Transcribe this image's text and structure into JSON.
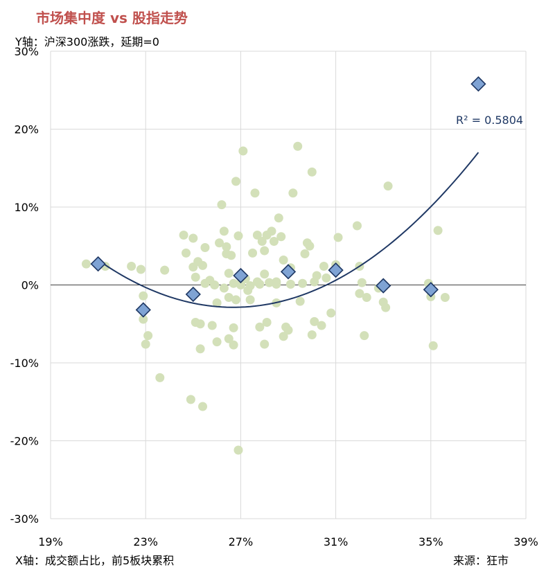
{
  "title": "市场集中度 vs 股指走势",
  "ylabel": "Y轴：沪深300涨跌，延期=0",
  "xlabel": "X轴：成交额占比，前5板块累积",
  "source": "来源：狂市",
  "chart_data": {
    "type": "scatter",
    "title": "市场集中度 vs 股指走势",
    "xlabel": "X轴：成交额占比，前5板块累积",
    "ylabel": "Y轴：沪深300涨跌，延期=0",
    "xlim": [
      0.19,
      0.39
    ],
    "ylim": [
      -0.3,
      0.3
    ],
    "x_ticks": [
      0.19,
      0.23,
      0.27,
      0.31,
      0.35,
      0.39
    ],
    "x_tick_labels": [
      "19%",
      "23%",
      "27%",
      "31%",
      "35%",
      "39%"
    ],
    "y_ticks": [
      0.3,
      0.2,
      0.1,
      0.0,
      -0.1,
      -0.2,
      -0.3
    ],
    "y_tick_labels": [
      "30%",
      "20%",
      "10%",
      "0%",
      "-10%",
      "-20%",
      "-30%"
    ],
    "grid": true,
    "colors": {
      "scatter": "#d3e0b9",
      "diamond_fill": "#7fa3d4",
      "diamond_stroke": "#1f3864",
      "trend": "#1f3864",
      "title": "#c0504d"
    },
    "series": [
      {
        "marker": "circle",
        "x": [
          0.205,
          0.213,
          0.224,
          0.228,
          0.229,
          0.229,
          0.23,
          0.231,
          0.236,
          0.238,
          0.246,
          0.247,
          0.249,
          0.25,
          0.25,
          0.251,
          0.251,
          0.252,
          0.253,
          0.253,
          0.254,
          0.254,
          0.255,
          0.255,
          0.257,
          0.258,
          0.259,
          0.26,
          0.26,
          0.261,
          0.262,
          0.263,
          0.263,
          0.264,
          0.264,
          0.265,
          0.265,
          0.265,
          0.266,
          0.267,
          0.267,
          0.267,
          0.268,
          0.268,
          0.269,
          0.269,
          0.27,
          0.27,
          0.271,
          0.272,
          0.273,
          0.274,
          0.274,
          0.275,
          0.276,
          0.277,
          0.277,
          0.278,
          0.278,
          0.279,
          0.28,
          0.28,
          0.28,
          0.281,
          0.281,
          0.282,
          0.283,
          0.284,
          0.285,
          0.285,
          0.285,
          0.286,
          0.287,
          0.288,
          0.288,
          0.289,
          0.29,
          0.291,
          0.291,
          0.292,
          0.294,
          0.295,
          0.296,
          0.297,
          0.298,
          0.299,
          0.3,
          0.3,
          0.301,
          0.301,
          0.302,
          0.304,
          0.305,
          0.306,
          0.308,
          0.31,
          0.311,
          0.319,
          0.32,
          0.32,
          0.321,
          0.322,
          0.323,
          0.328,
          0.33,
          0.331,
          0.332,
          0.349,
          0.35,
          0.351,
          0.353,
          0.356
        ],
        "y": [
          0.027,
          0.024,
          0.024,
          0.02,
          -0.014,
          -0.044,
          -0.076,
          -0.065,
          -0.119,
          0.019,
          0.064,
          0.041,
          -0.147,
          0.06,
          0.023,
          -0.048,
          0.01,
          0.03,
          -0.05,
          -0.082,
          0.025,
          -0.156,
          0.002,
          0.048,
          0.006,
          -0.052,
          0.0,
          -0.073,
          -0.023,
          0.054,
          0.103,
          -0.004,
          0.069,
          0.049,
          0.04,
          -0.016,
          -0.069,
          0.015,
          0.038,
          0.002,
          -0.055,
          -0.077,
          -0.019,
          0.133,
          -0.212,
          0.063,
          0.0,
          0.002,
          0.172,
          0.008,
          -0.007,
          -0.001,
          -0.019,
          0.041,
          0.118,
          0.064,
          0.004,
          -0.054,
          0.001,
          0.056,
          0.014,
          0.044,
          -0.076,
          -0.048,
          0.064,
          0.003,
          0.069,
          0.056,
          -0.023,
          0.001,
          0.004,
          0.086,
          0.062,
          0.032,
          -0.066,
          -0.054,
          -0.058,
          0.022,
          0.001,
          0.118,
          0.178,
          -0.021,
          0.002,
          0.04,
          0.054,
          0.05,
          -0.064,
          0.145,
          -0.047,
          0.004,
          0.012,
          -0.052,
          0.024,
          0.009,
          -0.036,
          0.026,
          0.061,
          0.076,
          -0.011,
          0.024,
          0.003,
          -0.065,
          -0.016,
          -0.004,
          -0.022,
          -0.029,
          0.127,
          0.002,
          -0.015,
          -0.078,
          0.07,
          -0.016
        ]
      },
      {
        "marker": "diamond",
        "x": [
          0.21,
          0.229,
          0.25,
          0.27,
          0.29,
          0.31,
          0.33,
          0.35,
          0.37
        ],
        "y": [
          0.027,
          -0.032,
          -0.012,
          0.012,
          0.017,
          0.019,
          -0.001,
          -0.006,
          0.258
        ]
      }
    ],
    "trendline": {
      "type": "polynomial",
      "order": 2,
      "x_start": 0.21,
      "x_end": 0.37,
      "r2_label": "R² = 0.5804"
    }
  }
}
